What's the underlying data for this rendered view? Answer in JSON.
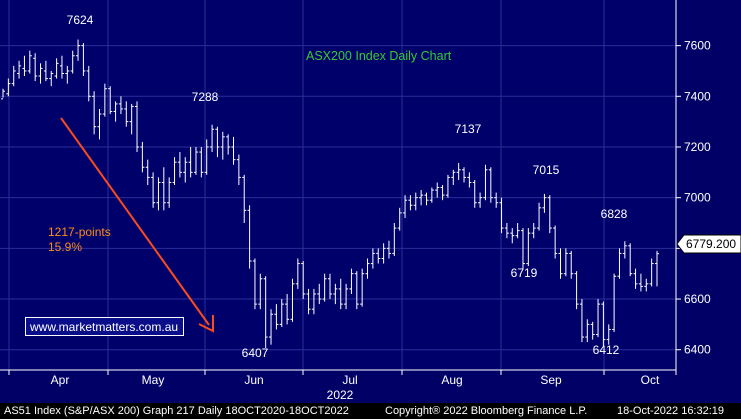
{
  "chart_data": {
    "type": "bar",
    "subtype": "ohlc",
    "title": "ASX200 Index Daily Chart",
    "ylim": [
      6320,
      7780
    ],
    "yticks": [
      6400,
      6600,
      6800,
      7000,
      7200,
      7400,
      7600
    ],
    "x_axis": {
      "months": [
        "Apr",
        "May",
        "Jun",
        "Jul",
        "Aug",
        "Sep",
        "Oct"
      ],
      "year_label": "2022"
    },
    "grid": true,
    "last_value_label": "6779.200",
    "annotations": {
      "peaks": [
        {
          "label": "7624",
          "value": 7624
        },
        {
          "label": "7288",
          "value": 7288
        },
        {
          "label": "6407",
          "value": 6407
        },
        {
          "label": "7137",
          "value": 7137
        },
        {
          "label": "6719",
          "value": 6719
        },
        {
          "label": "7015",
          "value": 7015
        },
        {
          "label": "6828",
          "value": 6828
        },
        {
          "label": "6412",
          "value": 6412
        }
      ],
      "arrow_text": [
        "1217-points",
        "15.9%"
      ]
    },
    "series": [
      {
        "values": [
          [
            7390,
            7430,
            7395,
            7420
          ],
          [
            7410,
            7470,
            7400,
            7450
          ],
          [
            7450,
            7520,
            7440,
            7500
          ],
          [
            7490,
            7540,
            7470,
            7520
          ],
          [
            7510,
            7560,
            7480,
            7500
          ],
          [
            7500,
            7580,
            7490,
            7560
          ],
          [
            7550,
            7570,
            7460,
            7480
          ],
          [
            7480,
            7530,
            7450,
            7510
          ],
          [
            7500,
            7540,
            7460,
            7470
          ],
          [
            7470,
            7500,
            7440,
            7490
          ],
          [
            7480,
            7550,
            7470,
            7530
          ],
          [
            7520,
            7560,
            7470,
            7490
          ],
          [
            7490,
            7520,
            7450,
            7500
          ],
          [
            7500,
            7580,
            7490,
            7560
          ],
          [
            7560,
            7624,
            7540,
            7600
          ],
          [
            7600,
            7610,
            7480,
            7500
          ],
          [
            7500,
            7520,
            7380,
            7400
          ],
          [
            7400,
            7420,
            7250,
            7280
          ],
          [
            7280,
            7350,
            7230,
            7330
          ],
          [
            7330,
            7450,
            7320,
            7430
          ],
          [
            7430,
            7440,
            7330,
            7340
          ],
          [
            7340,
            7380,
            7300,
            7370
          ],
          [
            7370,
            7400,
            7330,
            7350
          ],
          [
            7350,
            7380,
            7280,
            7300
          ],
          [
            7300,
            7370,
            7250,
            7360
          ],
          [
            7360,
            7380,
            7180,
            7200
          ],
          [
            7200,
            7220,
            7100,
            7120
          ],
          [
            7120,
            7150,
            7050,
            7080
          ],
          [
            7080,
            7100,
            6960,
            6980
          ],
          [
            6980,
            7080,
            6950,
            7060
          ],
          [
            7060,
            7120,
            6950,
            6980
          ],
          [
            6980,
            7080,
            6960,
            7060
          ],
          [
            7060,
            7160,
            7050,
            7140
          ],
          [
            7140,
            7180,
            7080,
            7100
          ],
          [
            7100,
            7160,
            7060,
            7140
          ],
          [
            7140,
            7200,
            7080,
            7100
          ],
          [
            7100,
            7200,
            7090,
            7180
          ],
          [
            7180,
            7200,
            7080,
            7100
          ],
          [
            7100,
            7230,
            7090,
            7200
          ],
          [
            7200,
            7288,
            7180,
            7270
          ],
          [
            7270,
            7280,
            7160,
            7200
          ],
          [
            7200,
            7260,
            7150,
            7240
          ],
          [
            7240,
            7250,
            7170,
            7200
          ],
          [
            7200,
            7240,
            7130,
            7150
          ],
          [
            7150,
            7170,
            7050,
            7080
          ],
          [
            7080,
            7090,
            6900,
            6950
          ],
          [
            6950,
            6970,
            6720,
            6750
          ],
          [
            6750,
            6760,
            6560,
            6580
          ],
          [
            6580,
            6700,
            6560,
            6680
          ],
          [
            6680,
            6690,
            6407,
            6450
          ],
          [
            6450,
            6560,
            6420,
            6540
          ],
          [
            6540,
            6580,
            6480,
            6500
          ],
          [
            6500,
            6600,
            6490,
            6580
          ],
          [
            6580,
            6620,
            6500,
            6520
          ],
          [
            6520,
            6680,
            6510,
            6660
          ],
          [
            6660,
            6760,
            6640,
            6740
          ],
          [
            6740,
            6750,
            6600,
            6620
          ],
          [
            6620,
            6640,
            6540,
            6560
          ],
          [
            6560,
            6640,
            6540,
            6620
          ],
          [
            6620,
            6660,
            6580,
            6600
          ],
          [
            6600,
            6700,
            6590,
            6680
          ],
          [
            6680,
            6700,
            6600,
            6620
          ],
          [
            6620,
            6660,
            6580,
            6640
          ],
          [
            6640,
            6680,
            6560,
            6580
          ],
          [
            6580,
            6660,
            6560,
            6640
          ],
          [
            6640,
            6720,
            6620,
            6700
          ],
          [
            6700,
            6710,
            6560,
            6580
          ],
          [
            6580,
            6720,
            6570,
            6700
          ],
          [
            6700,
            6760,
            6680,
            6740
          ],
          [
            6740,
            6800,
            6720,
            6780
          ],
          [
            6780,
            6800,
            6740,
            6760
          ],
          [
            6760,
            6820,
            6740,
            6800
          ],
          [
            6800,
            6830,
            6760,
            6780
          ],
          [
            6780,
            6900,
            6770,
            6880
          ],
          [
            6880,
            6960,
            6870,
            6940
          ],
          [
            6940,
            7010,
            6920,
            6990
          ],
          [
            6990,
            7010,
            6950,
            6970
          ],
          [
            6970,
            7020,
            6950,
            7000
          ],
          [
            7000,
            7030,
            6970,
            7010
          ],
          [
            7010,
            7020,
            6970,
            6990
          ],
          [
            6990,
            7040,
            6980,
            7030
          ],
          [
            7030,
            7060,
            7000,
            7040
          ],
          [
            7040,
            7050,
            6990,
            7010
          ],
          [
            7010,
            7090,
            7000,
            7080
          ],
          [
            7080,
            7110,
            7050,
            7100
          ],
          [
            7100,
            7137,
            7070,
            7110
          ],
          [
            7110,
            7120,
            7060,
            7080
          ],
          [
            7080,
            7100,
            7040,
            7060
          ],
          [
            7060,
            7070,
            6960,
            6980
          ],
          [
            6980,
            7020,
            6960,
            7000
          ],
          [
            7000,
            7130,
            6990,
            7110
          ],
          [
            7110,
            7120,
            6980,
            7000
          ],
          [
            7000,
            7020,
            6960,
            6980
          ],
          [
            6980,
            7000,
            6860,
            6880
          ],
          [
            6880,
            6900,
            6840,
            6860
          ],
          [
            6860,
            6880,
            6820,
            6850
          ],
          [
            6850,
            6900,
            6840,
            6870
          ],
          [
            6870,
            6880,
            6719,
            6740
          ],
          [
            6740,
            6880,
            6730,
            6860
          ],
          [
            6860,
            6900,
            6840,
            6880
          ],
          [
            6880,
            6980,
            6870,
            6960
          ],
          [
            6960,
            7015,
            6940,
            7000
          ],
          [
            7000,
            7010,
            6860,
            6880
          ],
          [
            6880,
            6890,
            6760,
            6780
          ],
          [
            6780,
            6800,
            6680,
            6700
          ],
          [
            6700,
            6800,
            6690,
            6780
          ],
          [
            6780,
            6790,
            6680,
            6700
          ],
          [
            6700,
            6710,
            6560,
            6580
          ],
          [
            6580,
            6600,
            6430,
            6450
          ],
          [
            6450,
            6520,
            6430,
            6500
          ],
          [
            6500,
            6510,
            6440,
            6460
          ],
          [
            6460,
            6600,
            6450,
            6580
          ],
          [
            6580,
            6590,
            6412,
            6440
          ],
          [
            6440,
            6500,
            6420,
            6480
          ],
          [
            6480,
            6700,
            6470,
            6690
          ],
          [
            6690,
            6800,
            6680,
            6780
          ],
          [
            6780,
            6828,
            6760,
            6810
          ],
          [
            6810,
            6820,
            6690,
            6700
          ],
          [
            6700,
            6720,
            6640,
            6660
          ],
          [
            6660,
            6700,
            6630,
            6650
          ],
          [
            6650,
            6680,
            6630,
            6660
          ],
          [
            6660,
            6760,
            6650,
            6740
          ],
          [
            6740,
            6790,
            6650,
            6779
          ]
        ]
      }
    ]
  },
  "footer": {
    "left": "AS51 Index (S&P/ASX 200) Graph 217  Daily 18OCT2020-18OCT2022",
    "center": "Copyright® 2022 Bloomberg Finance L.P.",
    "right": "18-Oct-2022 16:32:19"
  },
  "watermark": "www.marketmatters.com.au",
  "colors": {
    "background": "#000000",
    "plot_bg": "#00006b",
    "axis_strip": "#000066",
    "grid": "#2a2e9a",
    "bars": "#ffffff",
    "title_text": "#33cc33",
    "arrow": "#ff4a1c",
    "arrow_text": "#ff8c1a"
  }
}
